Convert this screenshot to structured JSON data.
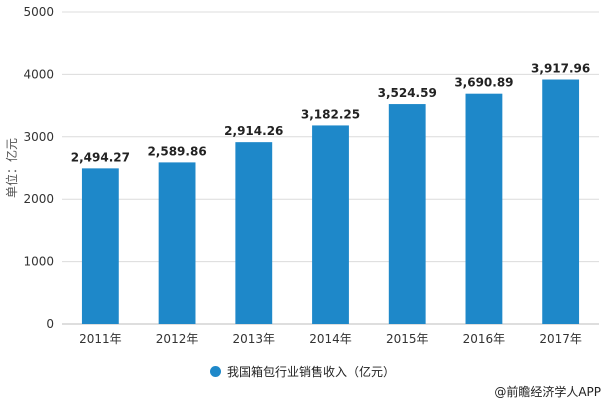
{
  "chart_data": {
    "type": "bar",
    "categories": [
      "2011年",
      "2012年",
      "2013年",
      "2014年",
      "2015年",
      "2016年",
      "2017年"
    ],
    "series": [
      {
        "name": "我国箱包行业销售收入（亿元）",
        "values": [
          2494.27,
          2589.86,
          2914.26,
          3182.25,
          3524.59,
          3690.89,
          3917.96
        ]
      }
    ],
    "data_labels": [
      "2,494.27",
      "2,589.86",
      "2,914.26",
      "3,182.25",
      "3,524.59",
      "3,690.89",
      "3,917.96"
    ],
    "ylabel": "单位：亿元",
    "ylim": [
      0,
      5000
    ],
    "yticks": [
      0,
      1000,
      2000,
      3000,
      4000,
      5000
    ],
    "grid": true,
    "legend_position": "bottom",
    "color": "#1e88c9"
  },
  "legend": {
    "label": "我国箱包行业销售收入（亿元）"
  },
  "source": {
    "text": "@前瞻经济学人APP"
  }
}
